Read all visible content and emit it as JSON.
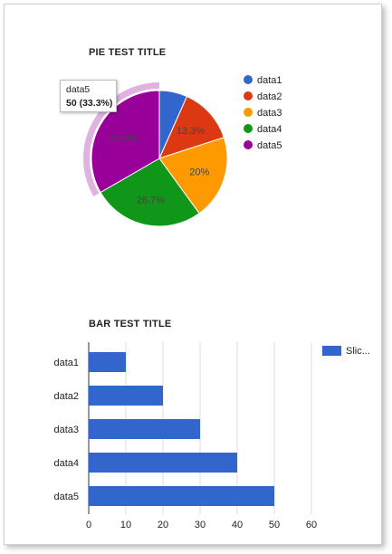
{
  "chart_data": [
    {
      "type": "pie",
      "title": "PIE TEST TITLE",
      "categories": [
        "data1",
        "data2",
        "data3",
        "data4",
        "data5"
      ],
      "values": [
        10,
        20,
        30,
        40,
        50
      ],
      "slice_labels": [
        "",
        "13.3%",
        "20%",
        "26.7%",
        "33.3%"
      ],
      "colors": [
        "#3366cc",
        "#dc3912",
        "#ff9900",
        "#109618",
        "#990099"
      ],
      "legend": "right",
      "tooltip": {
        "label": "data5",
        "value": "50 (33.3%)"
      }
    },
    {
      "type": "bar",
      "title": "BAR TEST TITLE",
      "categories": [
        "data1",
        "data2",
        "data3",
        "data4",
        "data5"
      ],
      "series": [
        {
          "name": "Slic...",
          "values": [
            10,
            20,
            30,
            40,
            50
          ]
        }
      ],
      "color": "#3366cc",
      "xlim": [
        0,
        60
      ],
      "ticks": [
        0,
        10,
        20,
        30,
        40,
        50,
        60
      ],
      "grid": true,
      "legend": "top-right"
    }
  ]
}
